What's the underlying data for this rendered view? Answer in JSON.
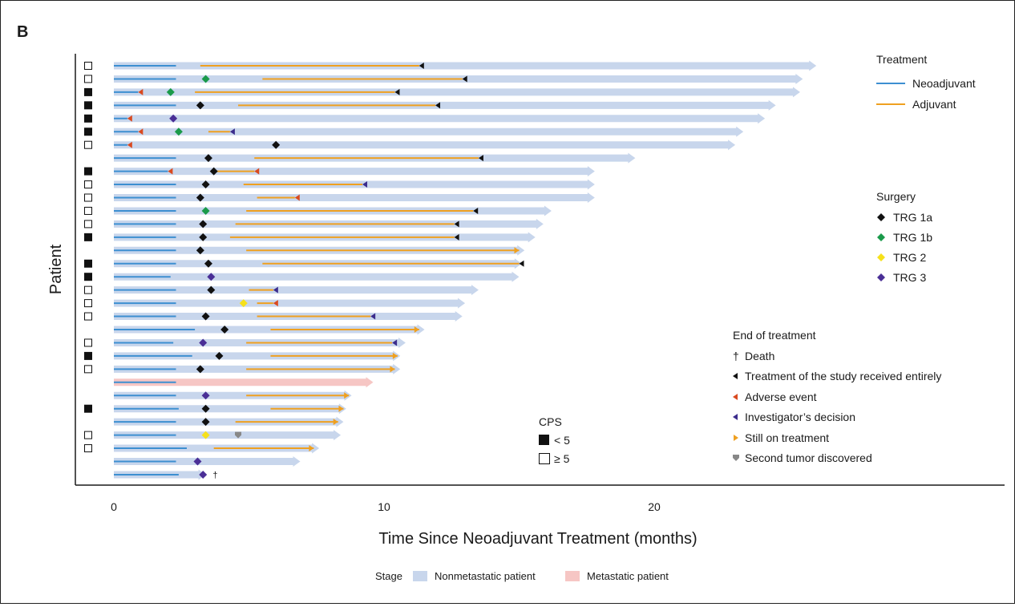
{
  "panel_label": "B",
  "colors": {
    "nonmetastatic": "#c8d6ec",
    "metastatic": "#f6c6c4",
    "neoadjuvant": "#3d8fd1",
    "adjuvant": "#efa020",
    "trg_1a": "#111111",
    "trg_1b": "#1a9a4a",
    "trg_2": "#f6e11a",
    "trg_3": "#4a2f96",
    "end_completed": "#111111",
    "end_adverse": "#d94a20",
    "end_investigator": "#3b2c8c",
    "end_ongoing": "#efa020",
    "end_second_tumor": "#888888"
  },
  "chart_data": {
    "type": "swimmer",
    "xlabel": "Time Since Neoadjuvant Treatment (months)",
    "ylabel": "Patient",
    "xlim": [
      0,
      33
    ],
    "xticks": [
      "0",
      "10",
      "20"
    ],
    "patients": [
      {
        "cps": "high",
        "stage": "non",
        "bar_end": 26.0,
        "neo": [
          0,
          2.3
        ],
        "adj": [
          3.2,
          11.3
        ],
        "surgery": null,
        "end": {
          "type": "completed",
          "x": 11.3
        }
      },
      {
        "cps": "high",
        "stage": "non",
        "bar_end": 25.5,
        "neo": [
          0,
          2.3
        ],
        "adj": [
          5.5,
          12.9
        ],
        "surgery": {
          "type": "1b",
          "x": 3.4
        },
        "end": {
          "type": "completed",
          "x": 12.9
        }
      },
      {
        "cps": "low",
        "stage": "non",
        "bar_end": 25.4,
        "neo": [
          0,
          0.9
        ],
        "adj": [
          3.0,
          10.4
        ],
        "surgery": {
          "type": "1b",
          "x": 2.1
        },
        "end": {
          "type": "completed",
          "x": 10.4
        },
        "adverse": 0.9
      },
      {
        "cps": "low",
        "stage": "non",
        "bar_end": 24.5,
        "neo": [
          0,
          2.3
        ],
        "adj": [
          4.6,
          11.9
        ],
        "surgery": {
          "type": "1a",
          "x": 3.2
        },
        "end": {
          "type": "completed",
          "x": 11.9
        }
      },
      {
        "cps": "low",
        "stage": "non",
        "bar_end": 24.1,
        "neo": [
          0,
          0.5
        ],
        "adj": null,
        "surgery": {
          "type": "3",
          "x": 2.2
        },
        "end": {
          "type": "adverse",
          "x": 0.5
        }
      },
      {
        "cps": "low",
        "stage": "non",
        "bar_end": 23.3,
        "neo": [
          0,
          0.9
        ],
        "adj": [
          3.5,
          4.3
        ],
        "surgery": {
          "type": "1b",
          "x": 2.4
        },
        "end": {
          "type": "investigator",
          "x": 4.3
        },
        "adverse": 0.9
      },
      {
        "cps": "high",
        "stage": "non",
        "bar_end": 23.0,
        "neo": [
          0,
          0.5
        ],
        "adj": null,
        "surgery": {
          "type": "1a",
          "x": 6.0
        },
        "end": {
          "type": "adverse",
          "x": 0.5
        }
      },
      {
        "cps": "none",
        "stage": "non",
        "bar_end": 19.3,
        "neo": [
          0,
          2.3
        ],
        "adj": [
          5.2,
          13.5
        ],
        "surgery": {
          "type": "1a",
          "x": 3.5
        },
        "end": {
          "type": "completed",
          "x": 13.5
        }
      },
      {
        "cps": "low",
        "stage": "non",
        "bar_end": 17.8,
        "neo": [
          0,
          2.0
        ],
        "adj": [
          3.8,
          5.2
        ],
        "surgery": {
          "type": "1a",
          "x": 3.7
        },
        "end": {
          "type": "adverse",
          "x": 5.2
        },
        "adverse": 2.0
      },
      {
        "cps": "high",
        "stage": "non",
        "bar_end": 17.8,
        "neo": [
          0,
          2.3
        ],
        "adj": [
          4.8,
          9.2
        ],
        "surgery": {
          "type": "1a",
          "x": 3.4
        },
        "end": {
          "type": "investigator",
          "x": 9.2
        }
      },
      {
        "cps": "high",
        "stage": "non",
        "bar_end": 17.8,
        "neo": [
          0,
          2.3
        ],
        "adj": [
          5.3,
          6.7
        ],
        "surgery": {
          "type": "1a",
          "x": 3.2
        },
        "end": {
          "type": "adverse",
          "x": 6.7
        }
      },
      {
        "cps": "high",
        "stage": "non",
        "bar_end": 16.2,
        "neo": [
          0,
          2.3
        ],
        "adj": [
          4.9,
          13.3
        ],
        "surgery": {
          "type": "1b",
          "x": 3.4
        },
        "end": {
          "type": "completed",
          "x": 13.3
        }
      },
      {
        "cps": "high",
        "stage": "non",
        "bar_end": 15.9,
        "neo": [
          0,
          2.3
        ],
        "adj": [
          4.5,
          12.6
        ],
        "surgery": {
          "type": "1a",
          "x": 3.3
        },
        "end": {
          "type": "completed",
          "x": 12.6
        }
      },
      {
        "cps": "low",
        "stage": "non",
        "bar_end": 15.6,
        "neo": [
          0,
          2.3
        ],
        "adj": [
          4.3,
          12.6
        ],
        "surgery": {
          "type": "1a",
          "x": 3.3
        },
        "end": {
          "type": "completed",
          "x": 12.6
        }
      },
      {
        "cps": "none",
        "stage": "non",
        "bar_end": 15.2,
        "neo": [
          0,
          2.3
        ],
        "adj": [
          4.9,
          15.0
        ],
        "surgery": {
          "type": "1a",
          "x": 3.2
        },
        "end": {
          "type": "ongoing",
          "x": 15.0
        }
      },
      {
        "cps": "low",
        "stage": "non",
        "bar_end": 15.1,
        "neo": [
          0,
          2.3
        ],
        "adj": [
          5.5,
          15.0
        ],
        "surgery": {
          "type": "1a",
          "x": 3.5
        },
        "end": {
          "type": "completed",
          "x": 15.0
        }
      },
      {
        "cps": "low",
        "stage": "non",
        "bar_end": 15.0,
        "neo": [
          0,
          2.1
        ],
        "adj": null,
        "surgery": {
          "type": "3",
          "x": 3.6
        },
        "end": null
      },
      {
        "cps": "high",
        "stage": "non",
        "bar_end": 13.5,
        "neo": [
          0,
          2.3
        ],
        "adj": [
          5.0,
          5.9
        ],
        "surgery": {
          "type": "1a",
          "x": 3.6
        },
        "end": {
          "type": "investigator",
          "x": 5.9
        }
      },
      {
        "cps": "high",
        "stage": "non",
        "bar_end": 13.0,
        "neo": [
          0,
          2.3
        ],
        "adj": [
          5.3,
          5.9
        ],
        "surgery": {
          "type": "2",
          "x": 4.8
        },
        "end": {
          "type": "adverse",
          "x": 5.9
        }
      },
      {
        "cps": "high",
        "stage": "non",
        "bar_end": 12.9,
        "neo": [
          0,
          2.3
        ],
        "adj": [
          5.3,
          9.5
        ],
        "surgery": {
          "type": "1a",
          "x": 3.4
        },
        "end": {
          "type": "investigator",
          "x": 9.5
        }
      },
      {
        "cps": "none",
        "stage": "non",
        "bar_end": 11.5,
        "neo": [
          0,
          3.0
        ],
        "adj": [
          5.8,
          11.3
        ],
        "surgery": {
          "type": "1a",
          "x": 4.1
        },
        "end": {
          "type": "ongoing",
          "x": 11.3
        }
      },
      {
        "cps": "high",
        "stage": "non",
        "bar_end": 10.8,
        "neo": [
          0,
          2.2
        ],
        "adj": [
          4.9,
          10.3
        ],
        "surgery": {
          "type": "3",
          "x": 3.3
        },
        "end": {
          "type": "investigator",
          "x": 10.3
        }
      },
      {
        "cps": "low",
        "stage": "non",
        "bar_end": 10.6,
        "neo": [
          0,
          2.9
        ],
        "adj": [
          5.8,
          10.5
        ],
        "surgery": {
          "type": "1a",
          "x": 3.9
        },
        "end": {
          "type": "ongoing",
          "x": 10.5
        }
      },
      {
        "cps": "high",
        "stage": "non",
        "bar_end": 10.6,
        "neo": [
          0,
          2.3
        ],
        "adj": [
          4.9,
          10.4
        ],
        "surgery": {
          "type": "1a",
          "x": 3.2
        },
        "end": {
          "type": "ongoing",
          "x": 10.4
        }
      },
      {
        "cps": "none",
        "stage": "met",
        "bar_end": 9.6,
        "neo": [
          0,
          2.3
        ],
        "adj": null,
        "surgery": null,
        "end": null
      },
      {
        "cps": "none",
        "stage": "non",
        "bar_end": 8.8,
        "neo": [
          0,
          2.3
        ],
        "adj": [
          4.9,
          8.7
        ],
        "surgery": {
          "type": "3",
          "x": 3.4
        },
        "end": {
          "type": "ongoing",
          "x": 8.7
        }
      },
      {
        "cps": "low",
        "stage": "non",
        "bar_end": 8.6,
        "neo": [
          0,
          2.4
        ],
        "adj": [
          5.8,
          8.5
        ],
        "surgery": {
          "type": "1a",
          "x": 3.4
        },
        "end": {
          "type": "ongoing",
          "x": 8.5
        }
      },
      {
        "cps": "none",
        "stage": "non",
        "bar_end": 8.5,
        "neo": [
          0,
          2.3
        ],
        "adj": [
          4.5,
          8.3
        ],
        "surgery": {
          "type": "1a",
          "x": 3.4
        },
        "end": {
          "type": "ongoing",
          "x": 8.3
        }
      },
      {
        "cps": "high",
        "stage": "non",
        "bar_end": 8.4,
        "neo": [
          0,
          2.3
        ],
        "adj": null,
        "surgery": {
          "type": "2",
          "x": 3.4
        },
        "end": {
          "type": "second_tumor",
          "x": 4.6
        }
      },
      {
        "cps": "high",
        "stage": "non",
        "bar_end": 7.6,
        "neo": [
          0,
          2.7
        ],
        "adj": [
          3.7,
          7.4
        ],
        "surgery": null,
        "end": {
          "type": "ongoing",
          "x": 7.4
        }
      },
      {
        "cps": "none",
        "stage": "non",
        "bar_end": 6.9,
        "neo": [
          0,
          2.3
        ],
        "adj": null,
        "surgery": {
          "type": "3",
          "x": 3.1
        },
        "end": null
      },
      {
        "cps": "none",
        "stage": "non",
        "bar_end": 3.4,
        "neo": [
          0,
          2.4
        ],
        "adj": null,
        "surgery": {
          "type": "3",
          "x": 3.3
        },
        "end": {
          "type": "death",
          "x": 3.6
        }
      }
    ]
  },
  "legend": {
    "treatment": {
      "title": "Treatment",
      "items": [
        {
          "key": "neoadjuvant",
          "label": "Neoadjuvant"
        },
        {
          "key": "adjuvant",
          "label": "Adjuvant"
        }
      ]
    },
    "surgery": {
      "title": "Surgery",
      "items": [
        {
          "key": "1a",
          "label": "TRG 1a"
        },
        {
          "key": "1b",
          "label": "TRG 1b"
        },
        {
          "key": "2",
          "label": "TRG 2"
        },
        {
          "key": "3",
          "label": "TRG 3"
        }
      ]
    },
    "end": {
      "title": "End of treatment",
      "items": [
        {
          "key": "death",
          "label": "Death",
          "symbol": "†"
        },
        {
          "key": "completed",
          "label": "Treatment of the study received entirely"
        },
        {
          "key": "adverse",
          "label": "Adverse event"
        },
        {
          "key": "investigator",
          "label": "Investigator’s decision"
        },
        {
          "key": "ongoing",
          "label": "Still on treatment"
        },
        {
          "key": "second_tumor",
          "label": "Second tumor discovered"
        }
      ]
    },
    "cps": {
      "title": "CPS",
      "items": [
        {
          "key": "low",
          "label": "< 5"
        },
        {
          "key": "high",
          "label": "≥ 5"
        }
      ]
    },
    "stage": {
      "title": "Stage",
      "items": [
        {
          "key": "nonmetastatic",
          "label": "Nonmetastatic patient"
        },
        {
          "key": "metastatic",
          "label": "Metastatic patient"
        }
      ]
    }
  }
}
